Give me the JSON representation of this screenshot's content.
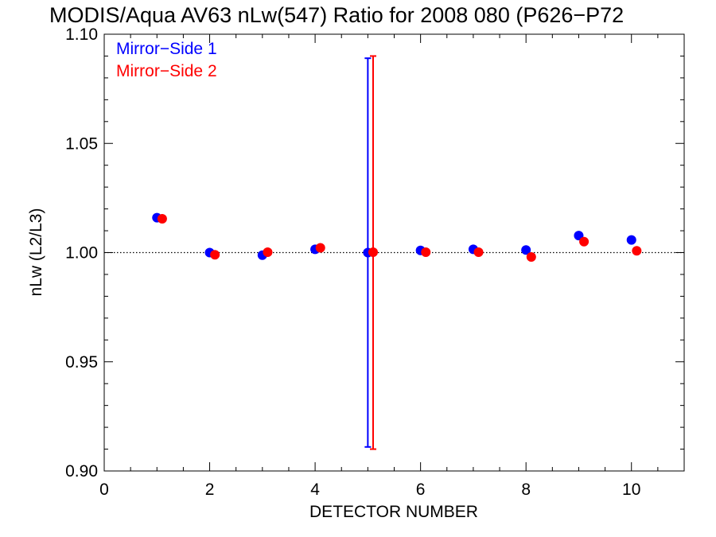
{
  "chart_data": {
    "type": "scatter",
    "title": "MODIS/Aqua AV63 nLw(547) Ratio for 2008 080 (P626−P72",
    "xlabel": "DETECTOR NUMBER",
    "ylabel": "nLw (L2/L3)",
    "xlim": [
      0,
      11
    ],
    "ylim": [
      0.9,
      1.1
    ],
    "x_ticks": [
      0,
      2,
      4,
      6,
      8,
      10
    ],
    "x_tick_labels": [
      "0",
      "2",
      "4",
      "6",
      "8",
      "10"
    ],
    "y_ticks": [
      0.9,
      0.95,
      1.0,
      1.05,
      1.1
    ],
    "y_tick_labels": [
      "0.90",
      "0.95",
      "1.00",
      "1.05",
      "1.10"
    ],
    "reference_line": {
      "y": 1.0,
      "style": "dotted"
    },
    "legend_position": "top-left",
    "series": [
      {
        "name": "Mirror−Side 1",
        "color": "#0000ff",
        "x": [
          1,
          2,
          3,
          4,
          5,
          6,
          7,
          8,
          9,
          10
        ],
        "y": [
          1.016,
          1.0,
          0.9988,
          1.0015,
          1.0,
          1.001,
          1.0015,
          1.0012,
          1.0078,
          1.0058
        ],
        "error_bar": {
          "x": 5,
          "low": 0.911,
          "high": 1.089
        }
      },
      {
        "name": "Mirror−Side 2",
        "color": "#ff0000",
        "x": [
          1.1,
          2.1,
          3.1,
          4.1,
          5.1,
          6.1,
          7.1,
          8.1,
          9.1,
          10.1
        ],
        "y": [
          1.0155,
          0.999,
          1.0002,
          1.0022,
          1.0002,
          1.0002,
          1.0002,
          0.998,
          1.005,
          1.0008
        ],
        "error_bar": {
          "x": 5.1,
          "low": 0.91,
          "high": 1.09
        }
      }
    ]
  }
}
